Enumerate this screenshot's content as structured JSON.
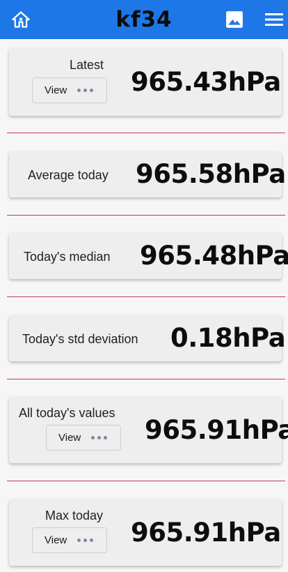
{
  "app": {
    "title": "kf34"
  },
  "appbar": {
    "home_icon": "home-icon",
    "image_icon": "image-icon",
    "menu_icon": "menu-icon",
    "color": "#1e77e6"
  },
  "accent": {
    "divider": "#c2385a"
  },
  "cards": {
    "latest": {
      "label": "Latest",
      "button": "View",
      "value": "965.43hPa"
    },
    "average": {
      "label": "Average today",
      "value": "965.58hPa"
    },
    "median": {
      "label": "Today's median",
      "value": "965.48hPa"
    },
    "stddev": {
      "label": "Today's std deviation",
      "value": "0.18hPa"
    },
    "all_values": {
      "label": "All today's values",
      "button": "View",
      "value": "965.91hPa"
    },
    "max": {
      "label": "Max today",
      "button": "View",
      "value": "965.91hPa"
    }
  }
}
